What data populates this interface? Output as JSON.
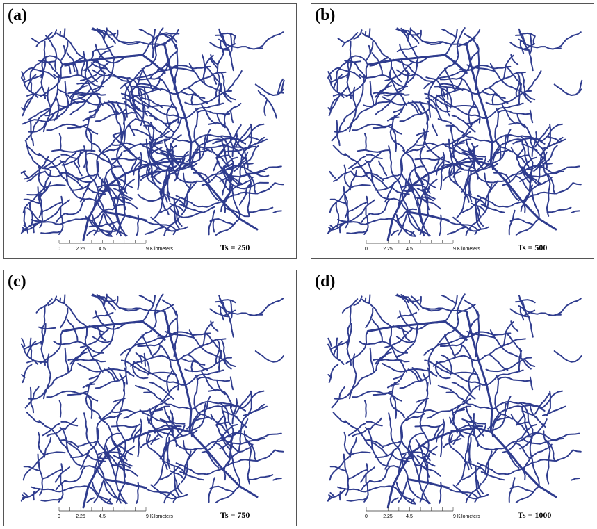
{
  "panels": [
    {
      "label": "(a)",
      "threshold": "Ts = 250"
    },
    {
      "label": "(b)",
      "threshold": "Ts = 500"
    },
    {
      "label": "(c)",
      "threshold": "Ts = 750"
    },
    {
      "label": "(d)",
      "threshold": "Ts = 1000"
    }
  ],
  "scale_bar": {
    "labels": [
      "0",
      "2.25",
      "4.5",
      "9 Kilometers"
    ]
  }
}
